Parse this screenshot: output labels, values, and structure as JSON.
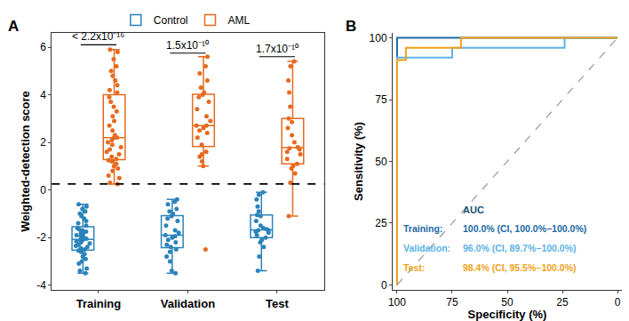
{
  "chart_data": [
    {
      "type": "box",
      "panel": "A",
      "ylabel": "Weighted-detection score",
      "categories": [
        "Training",
        "Validation",
        "Test"
      ],
      "legend": "top",
      "ylim": [
        -4.2,
        6.6
      ],
      "yticks": [
        -4,
        -2,
        0,
        2,
        4,
        6
      ],
      "threshold": 0.25,
      "annotations": [
        {
          "category": "Training",
          "y": 6.1,
          "text": "< 2.2x10⁻¹⁶"
        },
        {
          "category": "Validation",
          "y": 5.75,
          "text": "1.5x10⁻¹⁰"
        },
        {
          "category": "Test",
          "y": 5.6,
          "text": "1.7x10⁻¹⁰"
        }
      ],
      "series": [
        {
          "name": "Control",
          "color": "#2b83ba",
          "values": [
            [
              -3.5,
              -3.4,
              -3.3,
              -3.1,
              -3.0,
              -2.9,
              -2.8,
              -2.7,
              -2.6,
              -2.55,
              -2.5,
              -2.45,
              -2.4,
              -2.35,
              -2.3,
              -2.25,
              -2.2,
              -2.15,
              -2.1,
              -2.1,
              -2.05,
              -2.0,
              -1.95,
              -1.9,
              -1.85,
              -1.8,
              -1.75,
              -1.7,
              -1.65,
              -1.6,
              -1.5,
              -1.4,
              -1.3,
              -1.2,
              -1.1,
              -1.0,
              -0.9,
              -0.8,
              -0.7,
              -0.6
            ],
            [
              -3.5,
              -3.4,
              -3.0,
              -2.8,
              -2.6,
              -2.5,
              -2.4,
              -2.3,
              -2.2,
              -2.1,
              -2.0,
              -1.95,
              -1.9,
              -1.8,
              -1.7,
              -1.5,
              -1.3,
              -1.2,
              -1.1,
              -1.0,
              -0.9,
              -0.8,
              -0.6,
              -0.5,
              -0.4
            ],
            [
              -3.4,
              -2.8,
              -2.4,
              -2.2,
              -2.1,
              -2.0,
              -1.9,
              -1.8,
              -1.75,
              -1.7,
              -1.7,
              -1.65,
              -1.6,
              -1.5,
              -1.3,
              -1.1,
              -1.05,
              -0.9,
              -0.7,
              -0.4,
              -0.2,
              -0.1
            ]
          ]
        },
        {
          "name": "AML",
          "color": "#e66a1f",
          "values": [
            [
              0.25,
              0.3,
              0.5,
              0.6,
              0.8,
              0.9,
              1.0,
              1.1,
              1.2,
              1.25,
              1.3,
              1.4,
              1.5,
              1.6,
              1.7,
              1.8,
              1.9,
              2.0,
              2.1,
              2.2,
              2.2,
              2.3,
              2.5,
              2.7,
              2.9,
              3.1,
              3.3,
              3.5,
              3.7,
              3.9,
              4.1,
              4.2,
              4.4,
              4.6,
              4.8,
              5.0,
              5.2,
              5.5,
              5.8,
              5.9
            ],
            [
              -2.5,
              1.0,
              1.2,
              1.4,
              1.5,
              1.6,
              1.9,
              2.2,
              2.4,
              2.5,
              2.6,
              2.7,
              2.7,
              2.9,
              3.1,
              3.4,
              3.7,
              3.9,
              4.0,
              4.1,
              4.3,
              4.6,
              4.9,
              5.2,
              5.6
            ],
            [
              -1.1,
              0.3,
              0.7,
              0.9,
              1.0,
              1.1,
              1.3,
              1.5,
              1.6,
              1.7,
              1.75,
              1.8,
              2.0,
              2.3,
              2.6,
              2.85,
              3.0,
              3.5,
              4.1,
              4.6,
              5.2,
              5.4
            ]
          ]
        }
      ]
    },
    {
      "type": "line",
      "panel": "B",
      "xlabel": "Specificity (%)",
      "ylabel": "Sensitivity (%)",
      "xlim": [
        102,
        -2
      ],
      "xticks": [
        100,
        75,
        50,
        25,
        0
      ],
      "ylim": [
        -2,
        102
      ],
      "yticks": [
        0,
        25,
        50,
        75,
        100
      ],
      "legend": "bottom right",
      "legend_title": "AUC",
      "diagonal": {
        "x": [
          100,
          0
        ],
        "y": [
          0,
          100
        ]
      },
      "series": [
        {
          "name": "Training:",
          "color": "#1b6aa5",
          "auc": "100.0% (CI, 100.0%−100.0%)",
          "x": [
            100,
            100,
            0
          ],
          "y": [
            0,
            100,
            100
          ]
        },
        {
          "name": "Validation:",
          "color": "#5cb3e6",
          "auc": "96.0% (CI, 89.7%−100.0%)",
          "x": [
            100,
            100,
            75,
            75,
            24,
            24,
            0
          ],
          "y": [
            0,
            92,
            92,
            96,
            96,
            100,
            100
          ]
        },
        {
          "name": "Test:",
          "color": "#f0a21a",
          "auc": "98.4% (CI, 95.5%−100.0%)",
          "x": [
            100,
            100,
            96,
            96,
            71,
            71,
            0
          ],
          "y": [
            0,
            91,
            91,
            96,
            96,
            100,
            100
          ]
        }
      ]
    }
  ]
}
